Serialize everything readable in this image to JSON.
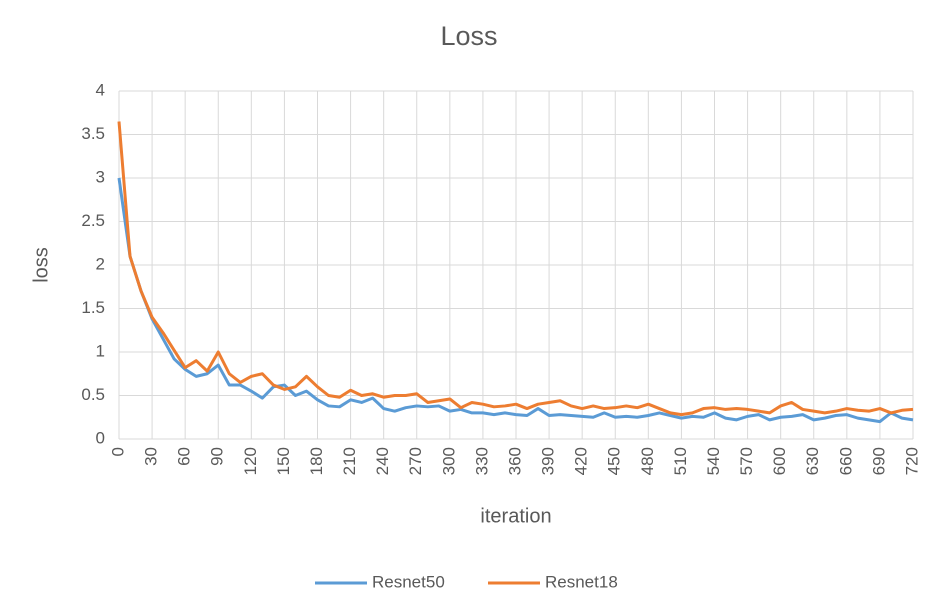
{
  "chart_data": {
    "type": "line",
    "title": "Loss",
    "x_label": "iteration",
    "y_label": "loss",
    "x": [
      0,
      10,
      20,
      30,
      40,
      50,
      60,
      70,
      80,
      90,
      100,
      110,
      120,
      130,
      140,
      150,
      160,
      170,
      180,
      190,
      200,
      210,
      220,
      230,
      240,
      250,
      260,
      270,
      280,
      290,
      300,
      310,
      320,
      330,
      340,
      350,
      360,
      370,
      380,
      390,
      400,
      410,
      420,
      430,
      440,
      450,
      460,
      470,
      480,
      490,
      500,
      510,
      520,
      530,
      540,
      550,
      560,
      570,
      580,
      590,
      600,
      610,
      620,
      630,
      640,
      650,
      660,
      670,
      680,
      690,
      700,
      710,
      720
    ],
    "series": [
      {
        "name": "Resnet50",
        "color": "#5b9bd5",
        "values": [
          3.0,
          2.1,
          1.7,
          1.38,
          1.15,
          0.92,
          0.8,
          0.72,
          0.75,
          0.85,
          0.62,
          0.62,
          0.55,
          0.47,
          0.6,
          0.62,
          0.5,
          0.55,
          0.45,
          0.38,
          0.37,
          0.45,
          0.42,
          0.47,
          0.35,
          0.32,
          0.36,
          0.38,
          0.37,
          0.38,
          0.32,
          0.34,
          0.3,
          0.3,
          0.28,
          0.3,
          0.28,
          0.27,
          0.35,
          0.27,
          0.28,
          0.27,
          0.26,
          0.25,
          0.3,
          0.25,
          0.26,
          0.25,
          0.27,
          0.3,
          0.27,
          0.24,
          0.26,
          0.25,
          0.3,
          0.24,
          0.22,
          0.26,
          0.28,
          0.22,
          0.25,
          0.26,
          0.28,
          0.22,
          0.24,
          0.27,
          0.28,
          0.24,
          0.22,
          0.2,
          0.3,
          0.24,
          0.22
        ]
      },
      {
        "name": "Resnet18",
        "color": "#ed7d31",
        "values": [
          3.65,
          2.1,
          1.7,
          1.4,
          1.22,
          1.02,
          0.82,
          0.9,
          0.78,
          1.0,
          0.75,
          0.65,
          0.72,
          0.75,
          0.62,
          0.57,
          0.6,
          0.72,
          0.6,
          0.5,
          0.48,
          0.56,
          0.5,
          0.52,
          0.48,
          0.5,
          0.5,
          0.52,
          0.42,
          0.44,
          0.46,
          0.36,
          0.42,
          0.4,
          0.37,
          0.38,
          0.4,
          0.35,
          0.4,
          0.42,
          0.44,
          0.38,
          0.35,
          0.38,
          0.35,
          0.36,
          0.38,
          0.36,
          0.4,
          0.35,
          0.3,
          0.28,
          0.3,
          0.35,
          0.36,
          0.34,
          0.35,
          0.34,
          0.32,
          0.3,
          0.38,
          0.42,
          0.34,
          0.32,
          0.3,
          0.32,
          0.35,
          0.33,
          0.32,
          0.35,
          0.3,
          0.33,
          0.34
        ]
      }
    ],
    "xlim": [
      0,
      720
    ],
    "xticks": [
      0,
      30,
      60,
      90,
      120,
      150,
      180,
      210,
      240,
      270,
      300,
      330,
      360,
      390,
      420,
      450,
      480,
      510,
      540,
      570,
      600,
      630,
      660,
      690,
      720
    ],
    "ylim": [
      0,
      4
    ],
    "yticks": [
      0,
      0.5,
      1,
      1.5,
      2,
      2.5,
      3,
      3.5,
      4
    ],
    "grid": true,
    "legend": "bottom"
  }
}
